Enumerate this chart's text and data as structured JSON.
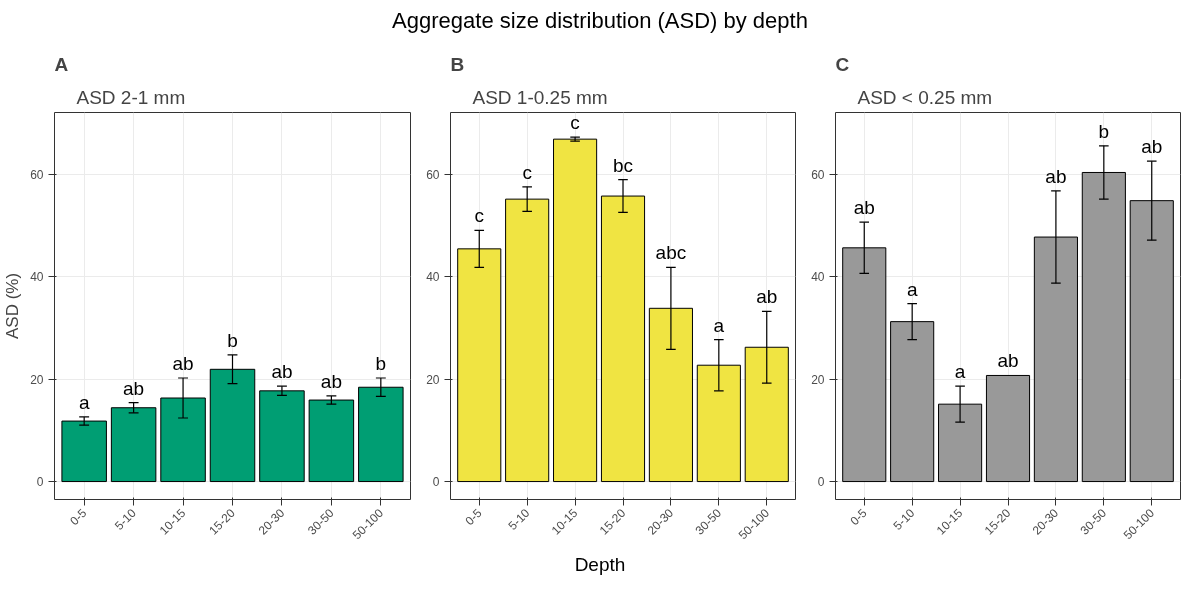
{
  "chart_data": [
    {
      "type": "bar",
      "subtitle": "ASD 2-1 mm",
      "ylabel": "ASD (%)",
      "categories": [
        "0-5",
        "5-10",
        "10-15",
        "15-20",
        "20-30",
        "30-50",
        "50-100"
      ],
      "values": [
        11.8,
        14.4,
        16.3,
        21.9,
        17.7,
        15.9,
        18.4
      ],
      "errors": [
        0.8,
        1,
        3.9,
        2.8,
        0.9,
        0.8,
        1.8
      ],
      "color": "#009e73",
      "ylim": [
        -3.5,
        72
      ],
      "yticks": [
        0,
        20,
        40,
        60
      ],
      "grid": true,
      "annotations": [
        "A",
        {
          "text": "a",
          "x": "0-5",
          "y": 12.6
        },
        {
          "text": "ab",
          "x": "5-10",
          "y": 15.4
        },
        {
          "text": "ab",
          "x": "10-15",
          "y": 20.2
        },
        {
          "text": "b",
          "x": "15-20",
          "y": 24.7
        },
        {
          "text": "ab",
          "x": "20-30",
          "y": 18.6
        },
        {
          "text": "ab",
          "x": "30-50",
          "y": 16.7
        },
        {
          "text": "b",
          "x": "50-100",
          "y": 20.2
        }
      ]
    },
    {
      "type": "bar",
      "title": "Aggregate size distribution (ASD) by depth",
      "subtitle": "ASD 1-0.25 mm",
      "xlabel": "Depth",
      "categories": [
        "0-5",
        "5-10",
        "10-15",
        "15-20",
        "20-30",
        "30-50",
        "50-100"
      ],
      "values": [
        45.4,
        55.1,
        66.8,
        55.7,
        33.8,
        22.7,
        26.2
      ],
      "errors": [
        3.6,
        2.4,
        0.4,
        3.2,
        8,
        5,
        7
      ],
      "color": "#f0e442",
      "ylim": [
        -3.5,
        72
      ],
      "yticks": [
        0,
        20,
        40,
        60
      ],
      "grid": true,
      "annotations": [
        "B",
        {
          "text": "c",
          "x": "0-5",
          "y": 49
        },
        {
          "text": "c",
          "x": "5-10",
          "y": 57.5
        },
        {
          "text": "c",
          "x": "10-15",
          "y": 67.2
        },
        {
          "text": "bc",
          "x": "15-20",
          "y": 58.9
        },
        {
          "text": "abc",
          "x": "20-30",
          "y": 41.8
        },
        {
          "text": "a",
          "x": "30-50",
          "y": 27.7
        },
        {
          "text": "ab",
          "x": "50-100",
          "y": 33.2
        }
      ]
    },
    {
      "type": "bar",
      "subtitle": "ASD < 0.25 mm",
      "categories": [
        "0-5",
        "5-10",
        "10-15",
        "15-20",
        "20-30",
        "30-50",
        "50-100"
      ],
      "values": [
        45.6,
        31.2,
        15.1,
        20.7,
        47.7,
        60.3,
        54.8
      ],
      "errors": [
        5,
        3.5,
        3.5,
        null,
        9,
        5.2,
        7.7
      ],
      "color": "#999999",
      "ylim": [
        -3.5,
        72
      ],
      "yticks": [
        0,
        20,
        40,
        60
      ],
      "grid": true,
      "annotations": [
        "C",
        {
          "text": "ab",
          "x": "0-5",
          "y": 50.6
        },
        {
          "text": "a",
          "x": "5-10",
          "y": 34.7
        },
        {
          "text": "a",
          "x": "10-15",
          "y": 18.6
        },
        {
          "text": "ab",
          "x": "15-20",
          "y": 20.7
        },
        {
          "text": "ab",
          "x": "20-30",
          "y": 56.7
        },
        {
          "text": "b",
          "x": "30-50",
          "y": 65.5
        },
        {
          "text": "ab",
          "x": "50-100",
          "y": 62.5
        }
      ]
    }
  ]
}
